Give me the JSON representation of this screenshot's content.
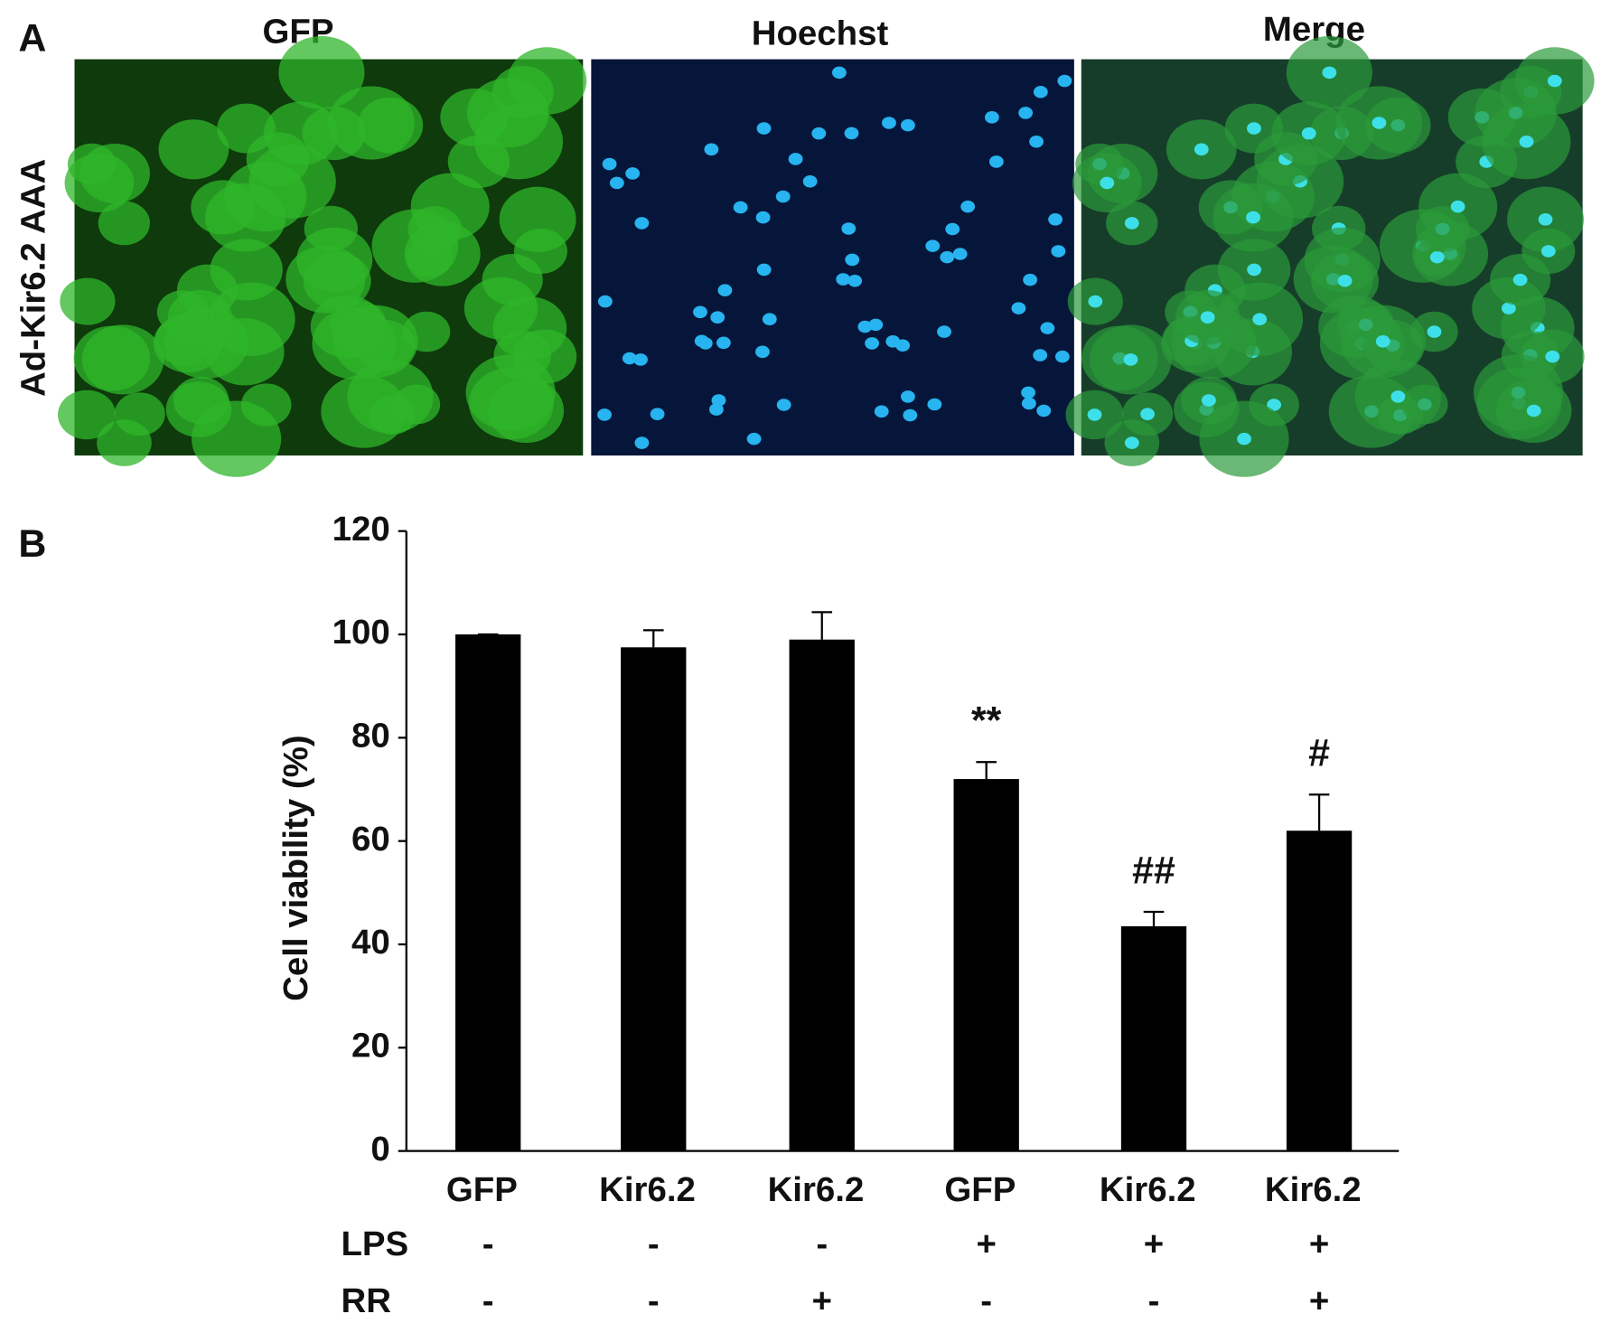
{
  "panels": {
    "a_label": "A",
    "b_label": "B"
  },
  "micrographs": {
    "columns": [
      "GFP",
      "Hoechst",
      "Merge"
    ],
    "row_label": "Ad-Kir6.2 AAA"
  },
  "chart_data": {
    "type": "bar",
    "y_label": "Cell viability (%)",
    "categories": [
      "GFP",
      "Kir6.2",
      "Kir6.2",
      "GFP",
      "Kir6.2",
      "Kir6.2"
    ],
    "values": [
      100,
      97.5,
      99,
      72,
      43.5,
      62
    ],
    "errors": [
      0,
      3.3,
      5.3,
      3.3,
      2.8,
      7
    ],
    "annotations": [
      null,
      null,
      null,
      "**",
      "##",
      "#"
    ],
    "color": "#000000",
    "ylim": [
      0,
      120
    ],
    "yticks": [
      0,
      20,
      40,
      60,
      80,
      100,
      120
    ],
    "factors": [
      {
        "name": "LPS",
        "values": [
          "-",
          "-",
          "-",
          "+",
          "+",
          "+"
        ]
      },
      {
        "name": "RR",
        "values": [
          "-",
          "-",
          "+",
          "-",
          "-",
          "+"
        ]
      }
    ]
  }
}
